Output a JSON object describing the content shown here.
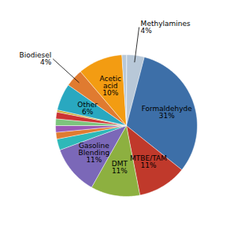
{
  "chart_data": {
    "type": "pie",
    "categories": [
      "Methylamines\n4%",
      "Formaldehyde\n31%",
      "MTBE/TAM\n11%",
      "DMT\n11%",
      "Gasoline\nBlending\n11%",
      null,
      null,
      null,
      null,
      null,
      null,
      "Other\n6%",
      "Biodiesel\n4%",
      "Acetic\nacid\n10%",
      null
    ],
    "values": [
      4,
      31,
      11,
      11,
      11,
      2.5,
      1.5,
      1.5,
      1.5,
      1.5,
      0.5,
      6,
      4,
      10,
      1
    ],
    "colors": [
      "#b8c8d8",
      "#3d6fa8",
      "#c0392b",
      "#8db040",
      "#7b68b8",
      "#2eb8b8",
      "#e07b30",
      "#9b59b6",
      "#7dc47d",
      "#cc3333",
      "#ccaa33",
      "#29a8c0",
      "#e07b30",
      "#f39c12",
      "#b8c8d8"
    ]
  }
}
